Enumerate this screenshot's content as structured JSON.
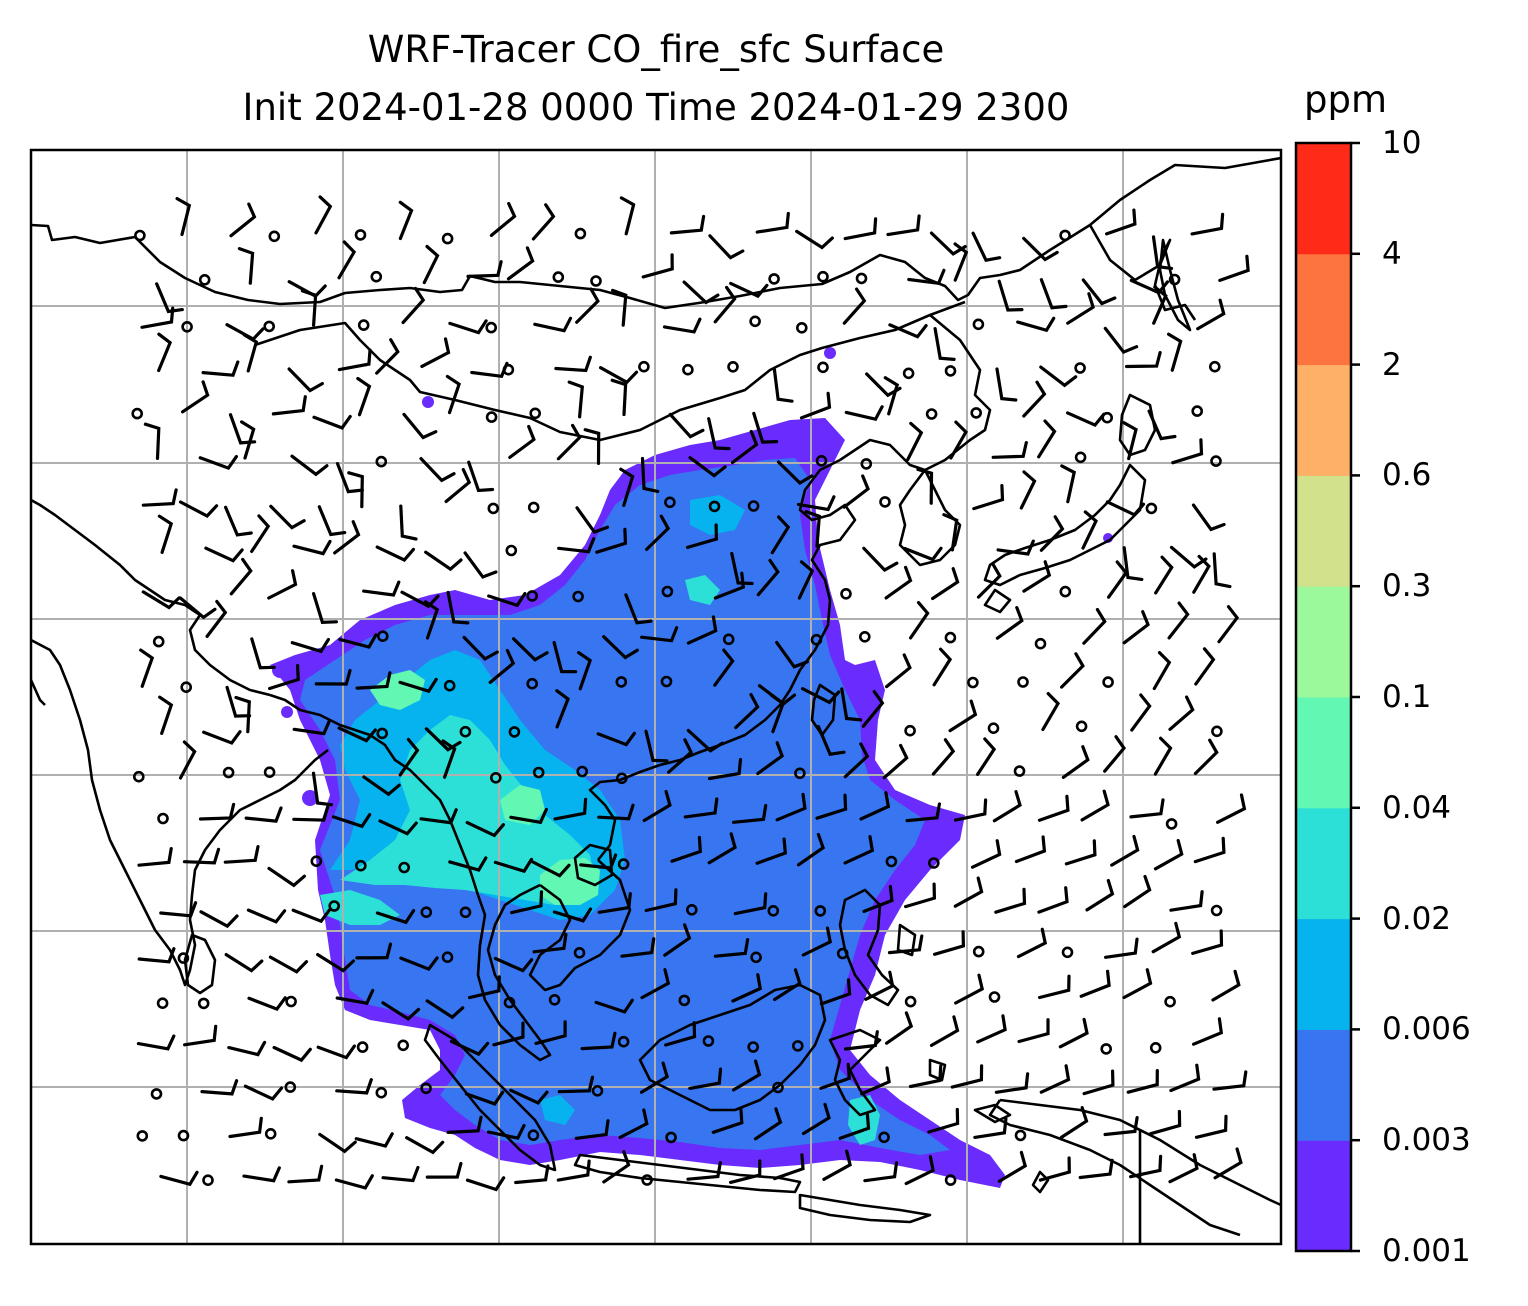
{
  "title": {
    "line1": "WRF-Tracer CO_fire_sfc Surface",
    "line2": "Init 2024-01-28 0000 Time 2024-01-29 2300"
  },
  "colorbar": {
    "units": "ppm",
    "levels": [
      "0.001",
      "0.003",
      "0.006",
      "0.02",
      "0.04",
      "0.1",
      "0.3",
      "0.6",
      "2",
      "4",
      "10"
    ],
    "colors": [
      "#6a2cfd",
      "#3775f1",
      "#06b3ee",
      "#2de0d7",
      "#62f8b3",
      "#9bf89b",
      "#d1e18c",
      "#fdb066",
      "#fe743e",
      "#ff2b18"
    ]
  },
  "map": {
    "background": "#ffffff",
    "coastline_color": "#000000",
    "grid_color": "#b0b0b0",
    "wind_barb_color": "#000000",
    "features": [
      "coastlines",
      "country-borders",
      "lat-lon-grid",
      "wind-barbs",
      "calm-wind-circles",
      "filled-contour-co-fire"
    ]
  }
}
